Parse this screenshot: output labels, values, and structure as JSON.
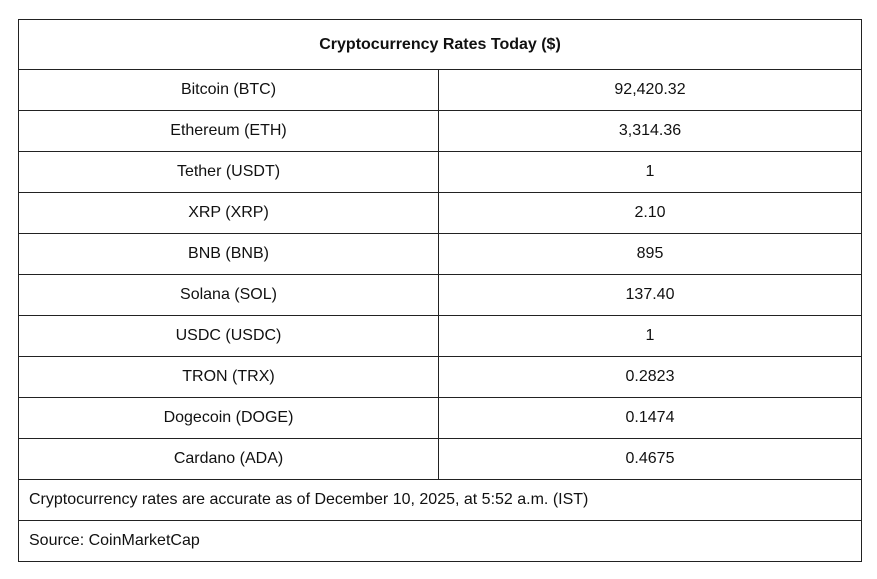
{
  "table": {
    "title": "Cryptocurrency Rates Today ($)",
    "rows": [
      {
        "name": "Bitcoin (BTC)",
        "value": "92,420.32"
      },
      {
        "name": "Ethereum (ETH)",
        "value": "3,314.36"
      },
      {
        "name": "Tether (USDT)",
        "value": "1"
      },
      {
        "name": "XRP (XRP)",
        "value": "2.10"
      },
      {
        "name": "BNB (BNB)",
        "value": "895"
      },
      {
        "name": "Solana (SOL)",
        "value": "137.40"
      },
      {
        "name": "USDC (USDC)",
        "value": "1"
      },
      {
        "name": "TRON (TRX)",
        "value": "0.2823"
      },
      {
        "name": "Dogecoin (DOGE)",
        "value": "0.1474"
      },
      {
        "name": "Cardano (ADA)",
        "value": "0.4675"
      }
    ],
    "note": "Cryptocurrency rates are accurate as of December 10, 2025, at 5:52 a.m. (IST)",
    "source": "Source: CoinMarketCap"
  }
}
